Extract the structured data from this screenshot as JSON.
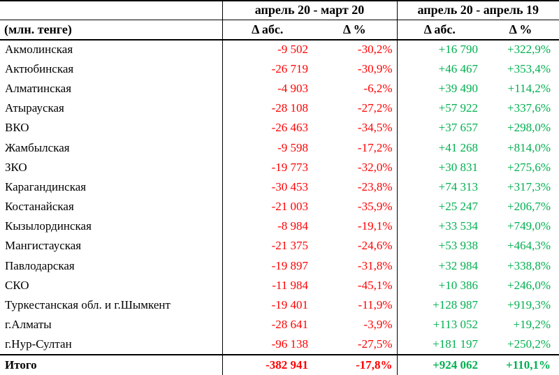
{
  "colors": {
    "negative": "#ff0000",
    "positive": "#00b050",
    "text": "#000000",
    "border": "#000000"
  },
  "table": {
    "unit_label": "(млн. тенге)",
    "col_groups": [
      {
        "label": "апрель 20 - март 20"
      },
      {
        "label": "апрель 20 - апрель 19"
      }
    ],
    "sub_headers": {
      "abs": "Δ абс.",
      "pct": "Δ %"
    },
    "rows": [
      {
        "name": "Акмолинская",
        "m_abs": "-9 502",
        "m_pct": "-30,2%",
        "y_abs": "+16 790",
        "y_pct": "+322,9%"
      },
      {
        "name": "Актюбинская",
        "m_abs": "-26 719",
        "m_pct": "-30,9%",
        "y_abs": "+46 467",
        "y_pct": "+353,4%"
      },
      {
        "name": "Алматинская",
        "m_abs": "-4 903",
        "m_pct": "-6,2%",
        "y_abs": "+39 490",
        "y_pct": "+114,2%"
      },
      {
        "name": "Атырауская",
        "m_abs": "-28 108",
        "m_pct": "-27,2%",
        "y_abs": "+57 922",
        "y_pct": "+337,6%"
      },
      {
        "name": "ВКО",
        "m_abs": "-26 463",
        "m_pct": "-34,5%",
        "y_abs": "+37 657",
        "y_pct": "+298,0%"
      },
      {
        "name": "Жамбылская",
        "m_abs": "-9 598",
        "m_pct": "-17,2%",
        "y_abs": "+41 268",
        "y_pct": "+814,0%"
      },
      {
        "name": "ЗКО",
        "m_abs": "-19 773",
        "m_pct": "-32,0%",
        "y_abs": "+30 831",
        "y_pct": "+275,6%"
      },
      {
        "name": "Карагандинская",
        "m_abs": "-30 453",
        "m_pct": "-23,8%",
        "y_abs": "+74 313",
        "y_pct": "+317,3%"
      },
      {
        "name": "Костанайская",
        "m_abs": "-21 003",
        "m_pct": "-35,9%",
        "y_abs": "+25 247",
        "y_pct": "+206,7%"
      },
      {
        "name": "Кызылординская",
        "m_abs": "-8 984",
        "m_pct": "-19,1%",
        "y_abs": "+33 534",
        "y_pct": "+749,0%"
      },
      {
        "name": "Мангистауская",
        "m_abs": "-21 375",
        "m_pct": "-24,6%",
        "y_abs": "+53 938",
        "y_pct": "+464,3%"
      },
      {
        "name": "Павлодарская",
        "m_abs": "-19 897",
        "m_pct": "-31,8%",
        "y_abs": "+32 984",
        "y_pct": "+338,8%"
      },
      {
        "name": "СКО",
        "m_abs": "-11 984",
        "m_pct": "-45,1%",
        "y_abs": "+10 386",
        "y_pct": "+246,0%"
      },
      {
        "name": "Туркестанская обл. и г.Шымкент",
        "m_abs": "-19 401",
        "m_pct": "-11,9%",
        "y_abs": "+128 987",
        "y_pct": "+919,3%"
      },
      {
        "name": "г.Алматы",
        "m_abs": "-28 641",
        "m_pct": "-3,9%",
        "y_abs": "+113 052",
        "y_pct": "+19,2%"
      },
      {
        "name": "г.Нур-Султан",
        "m_abs": "-96 138",
        "m_pct": "-27,5%",
        "y_abs": "+181 197",
        "y_pct": "+250,2%"
      }
    ],
    "totals": {
      "name": "Итого",
      "m_abs": "-382 941",
      "m_pct": "-17,8%",
      "y_abs": "+924 062",
      "y_pct": "+110,1%"
    }
  }
}
